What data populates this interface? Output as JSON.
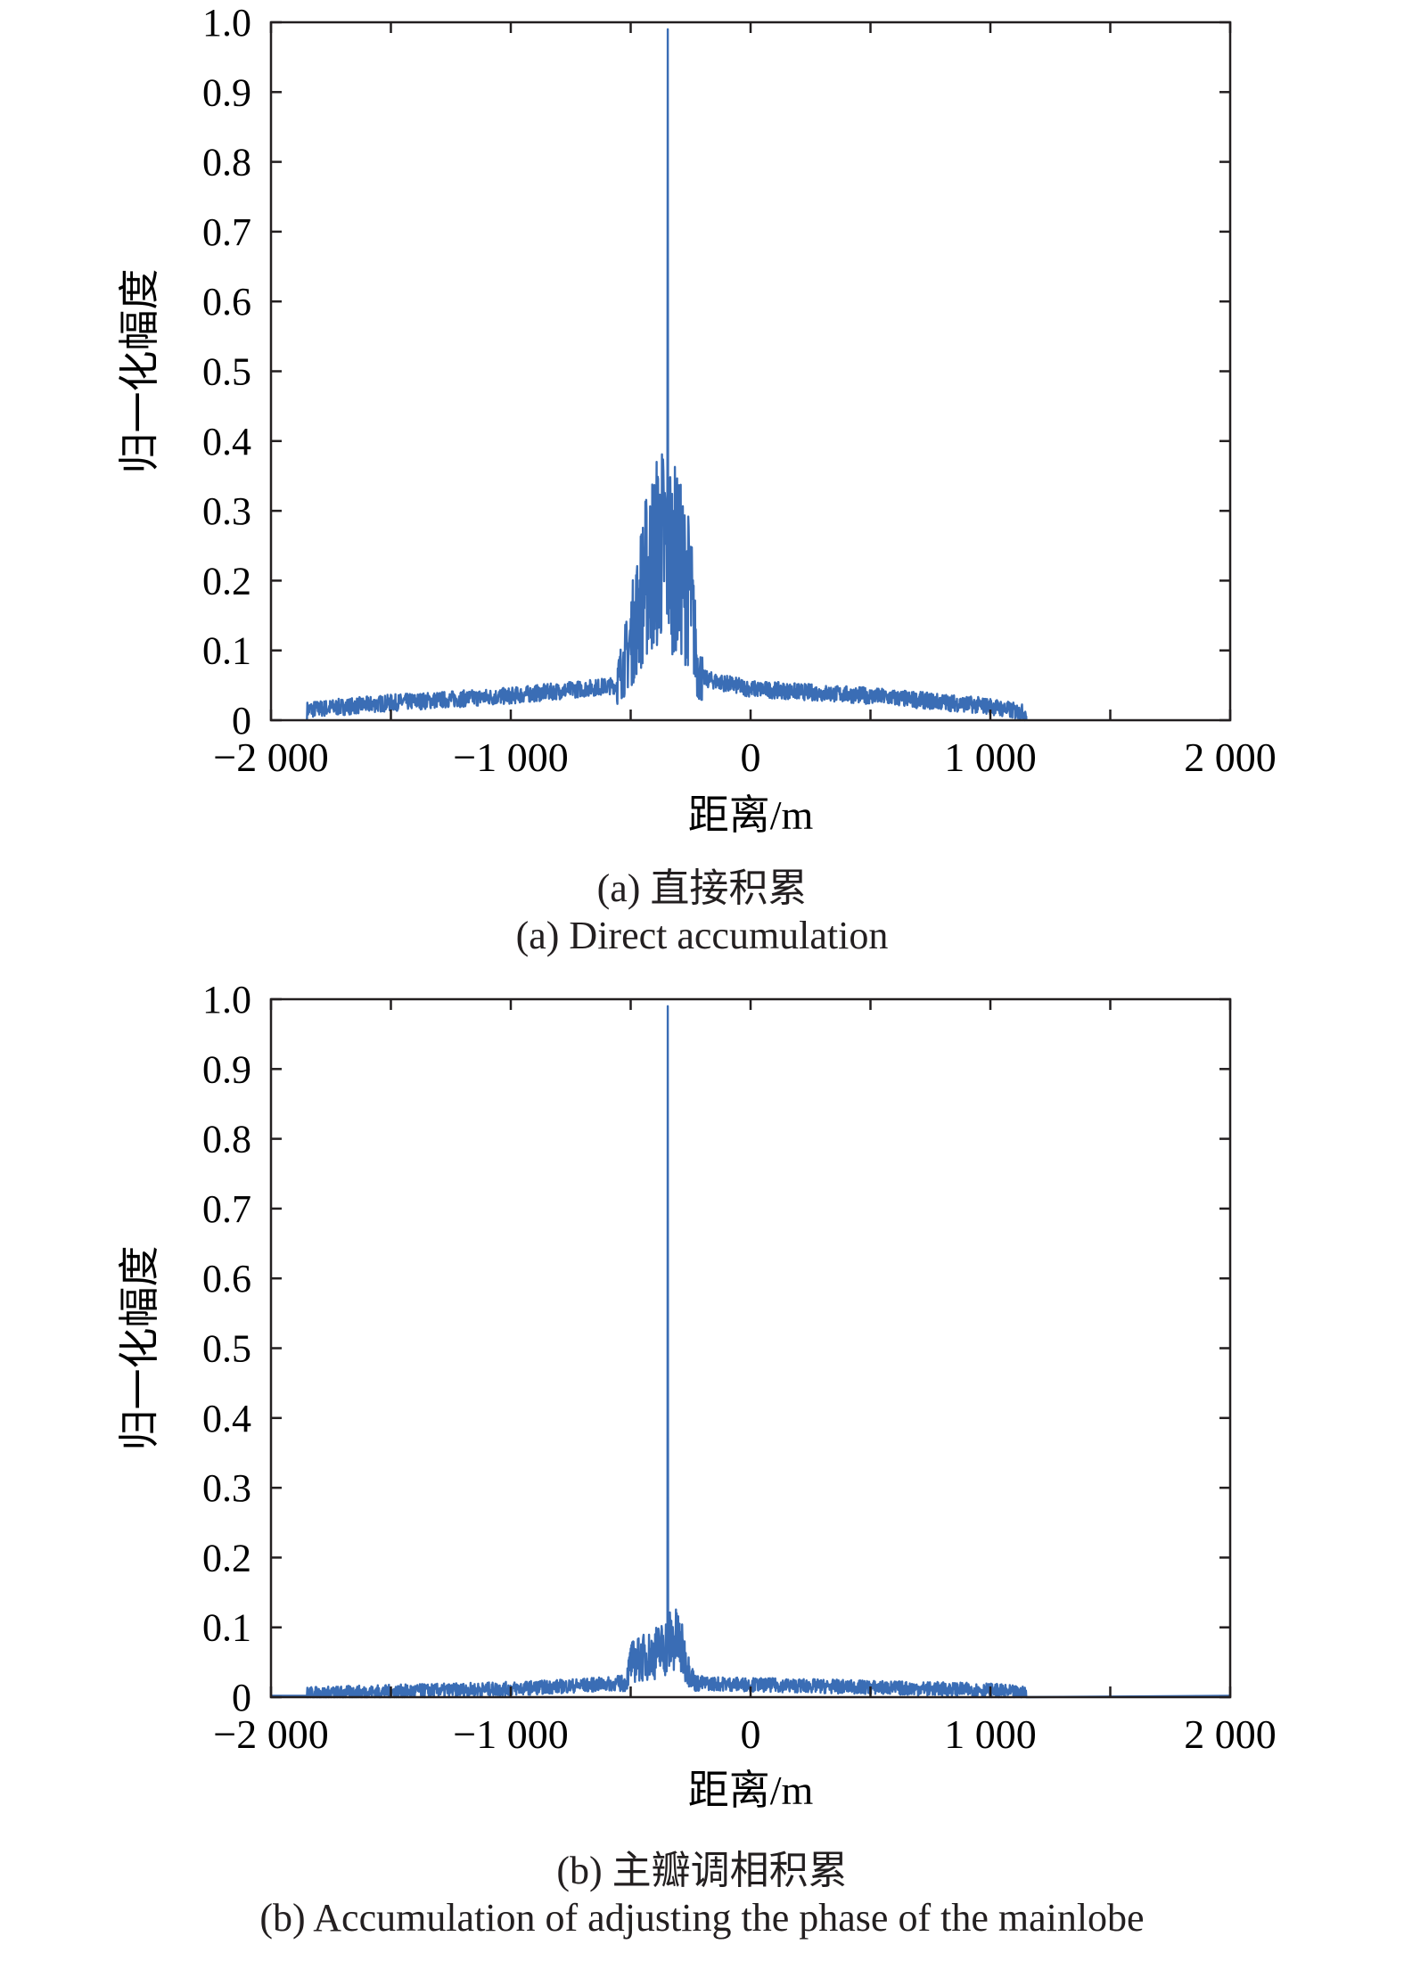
{
  "chart_data": [
    {
      "type": "line",
      "panel": "a",
      "xlabel": "距离/m",
      "ylabel": "归一化幅度",
      "xlim": [
        -2000,
        2000
      ],
      "ylim": [
        0,
        1.0
      ],
      "xticks": [
        "−2 000",
        "−1 000",
        "0",
        "1 000",
        "2 000"
      ],
      "xtick_values": [
        -2000,
        -1000,
        0,
        1000,
        2000
      ],
      "yticks": [
        "0",
        "0.1",
        "0.2",
        "0.3",
        "0.4",
        "0.5",
        "0.6",
        "0.7",
        "0.8",
        "0.9",
        "1.0"
      ],
      "caption_cn": "(a) 直接积累",
      "caption_en": "(a) Direct accumulation",
      "color": "#3a6db5",
      "envelope_x": [
        -1850,
        -1500,
        -1000,
        -560,
        -510,
        -440,
        -380,
        -350,
        -300,
        -250,
        -220,
        -200,
        0,
        500,
        1000,
        1150
      ],
      "envelope_y": [
        0.015,
        0.025,
        0.035,
        0.05,
        0.1,
        0.2,
        0.25,
        0.25,
        0.22,
        0.18,
        0.07,
        0.06,
        0.045,
        0.035,
        0.02,
        0.01
      ],
      "peak": {
        "x": -345,
        "y": 0.99
      },
      "noise": 0.012
    },
    {
      "type": "line",
      "panel": "b",
      "xlabel": "距离/m",
      "ylabel": "归一化幅度",
      "xlim": [
        -2000,
        2000
      ],
      "ylim": [
        0,
        1.0
      ],
      "xticks": [
        "−2 000",
        "−1 000",
        "0",
        "1 000",
        "2 000"
      ],
      "xtick_values": [
        -2000,
        -1000,
        0,
        1000,
        2000
      ],
      "yticks": [
        "0",
        "0.1",
        "0.2",
        "0.3",
        "0.4",
        "0.5",
        "0.6",
        "0.7",
        "0.8",
        "0.9",
        "1.0"
      ],
      "caption_cn": "(b) 主瓣调相积累",
      "caption_en": "(b) Accumulation of adjusting the  phase of the mainlobe",
      "color": "#3a6db5",
      "envelope_x": [
        -1850,
        -1000,
        -520,
        -500,
        -420,
        -360,
        -340,
        -300,
        -260,
        -230,
        0,
        500,
        1000,
        1150
      ],
      "envelope_y": [
        0.005,
        0.012,
        0.02,
        0.05,
        0.06,
        0.07,
        0.08,
        0.08,
        0.04,
        0.02,
        0.018,
        0.014,
        0.01,
        0.005
      ],
      "peak": {
        "x": -345,
        "y": 0.99
      },
      "noise": 0.01
    }
  ]
}
